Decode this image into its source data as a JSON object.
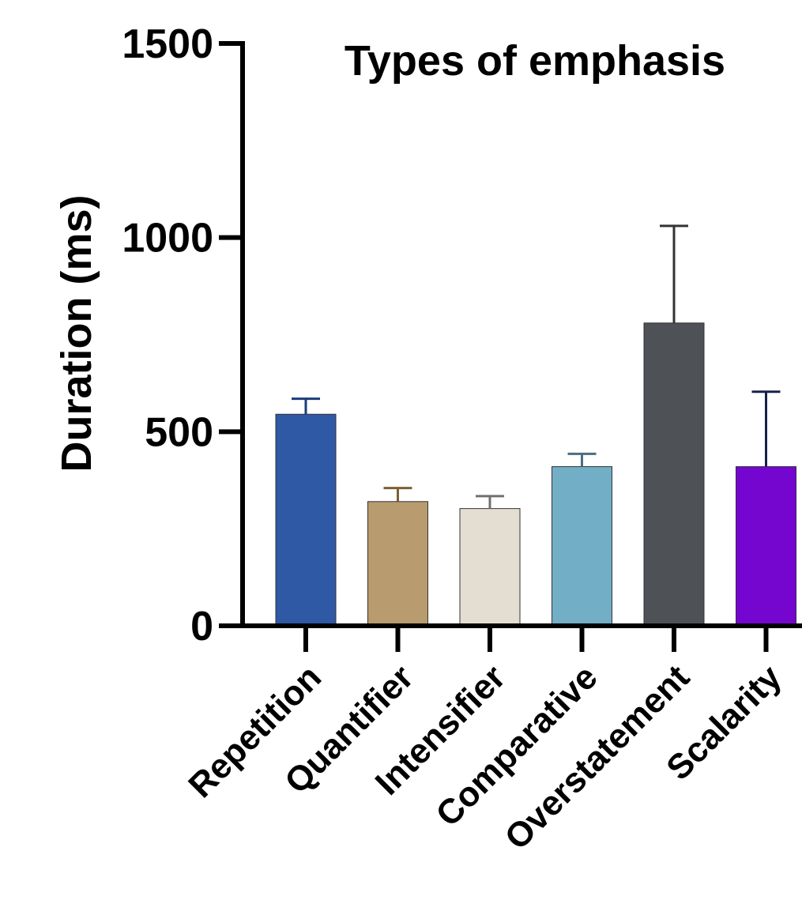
{
  "chart_data": {
    "type": "bar",
    "title": "Types of emphasis",
    "xlabel": "",
    "ylabel": "Duration (ms)",
    "ylim": [
      0,
      1500
    ],
    "yticks": [
      "0",
      "500",
      "1000",
      "1500"
    ],
    "categories": [
      "Repetition",
      "Quantifier",
      "Intensifier",
      "Comparative",
      "Overstatement",
      "Scalarity"
    ],
    "values": [
      545,
      320,
      302,
      410,
      780,
      410
    ],
    "error_upper": [
      40,
      35,
      32,
      33,
      250,
      193
    ],
    "colors": [
      "#2F58A5",
      "#B89B6E",
      "#E3DDD2",
      "#72AEC6",
      "#4E5257",
      "#7506D0"
    ],
    "error_colors": [
      "#1A3C7A",
      "#7D6130",
      "#707070",
      "#4B6E80",
      "#333333",
      "#17224A"
    ],
    "grid": false,
    "legend": "none"
  }
}
